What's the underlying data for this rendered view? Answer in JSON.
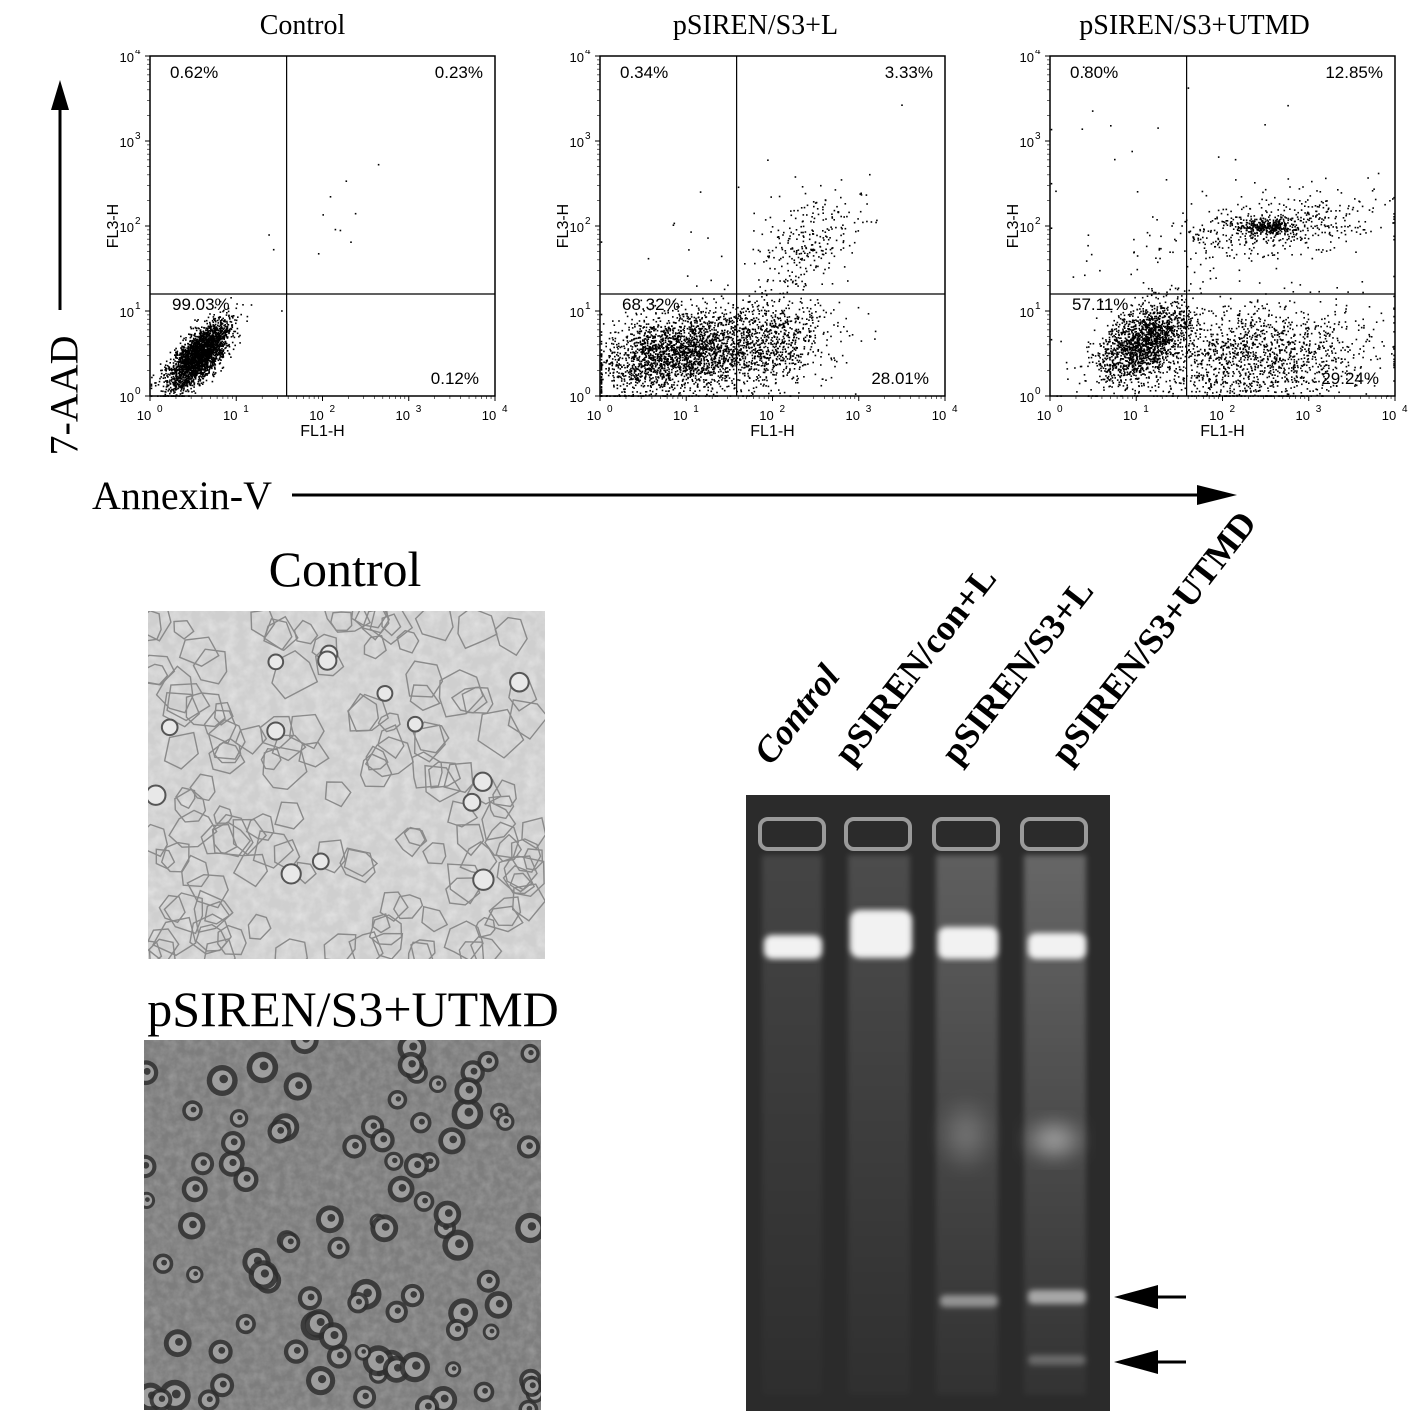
{
  "flow_panels": [
    {
      "title": "Control",
      "quadrants": {
        "ul": "0.62%",
        "ur": "0.23%",
        "ll": "99.03%",
        "lr": "0.12%"
      }
    },
    {
      "title": "pSIREN/S3+L",
      "quadrants": {
        "ul": "0.34%",
        "ur": "3.33%",
        "ll": "68.32%",
        "lr": "28.01%"
      }
    },
    {
      "title": "pSIREN/S3+UTMD",
      "quadrants": {
        "ul": "0.80%",
        "ur": "12.85%",
        "ll": "57.11%",
        "lr": "29.24%"
      }
    }
  ],
  "axes": {
    "x_channel": "FL1-H",
    "y_channel": "FL3-H",
    "tick_base": "10",
    "tick_exps": [
      "0",
      "1",
      "2",
      "3",
      "4"
    ]
  },
  "y_marker": "7-AAD",
  "x_marker": "Annexin-V",
  "micrographs": [
    {
      "title": "Control"
    },
    {
      "title": "pSIREN/S3+UTMD"
    }
  ],
  "gel_lanes": [
    "Control",
    "pSIREN/con+L",
    "pSIREN/S3+L",
    "pSIREN/S3+UTMD"
  ],
  "colors": {
    "ink": "#000000",
    "gel_bg": "#2b2b2b",
    "band": "#f2f2f2"
  },
  "chart_data": [
    {
      "type": "scatter",
      "title": "Control",
      "xlabel": "FL1-H",
      "ylabel": "FL3-H",
      "xscale": "log",
      "yscale": "log",
      "xlim": [
        1,
        10000
      ],
      "ylim": [
        1,
        10000
      ],
      "quadrant_percent": {
        "upper_left": 0.62,
        "upper_right": 0.23,
        "lower_left": 99.03,
        "lower_right": 0.12
      }
    },
    {
      "type": "scatter",
      "title": "pSIREN/S3+L",
      "xlabel": "FL1-H",
      "ylabel": "FL3-H",
      "xscale": "log",
      "yscale": "log",
      "xlim": [
        1,
        10000
      ],
      "ylim": [
        1,
        10000
      ],
      "quadrant_percent": {
        "upper_left": 0.34,
        "upper_right": 3.33,
        "lower_left": 68.32,
        "lower_right": 28.01
      }
    },
    {
      "type": "scatter",
      "title": "pSIREN/S3+UTMD",
      "xlabel": "FL1-H",
      "ylabel": "FL3-H",
      "xscale": "log",
      "yscale": "log",
      "xlim": [
        1,
        10000
      ],
      "ylim": [
        1,
        10000
      ],
      "quadrant_percent": {
        "upper_left": 0.8,
        "upper_right": 12.85,
        "lower_left": 57.11,
        "lower_right": 29.24
      }
    }
  ]
}
